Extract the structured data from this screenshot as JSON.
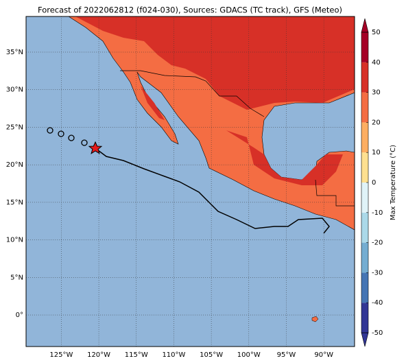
{
  "map": {
    "title": "Forecast of 2022062812 (f024-030), Sources: GDACS (TC track), GFS (Meteo)",
    "xlim": [
      -129.7,
      -85.9
    ],
    "ylim": [
      -4.2,
      39.75
    ],
    "lon_ticks": [
      {
        "value": -125,
        "label": "125°W"
      },
      {
        "value": -120,
        "label": "120°W"
      },
      {
        "value": -115,
        "label": "115°W"
      },
      {
        "value": -110,
        "label": "110°W"
      },
      {
        "value": -105,
        "label": "105°W"
      },
      {
        "value": -100,
        "label": "100°W"
      },
      {
        "value": -95,
        "label": "95°W"
      },
      {
        "value": -90,
        "label": "90°W"
      }
    ],
    "lat_ticks": [
      {
        "value": 0,
        "label": "0°"
      },
      {
        "value": 5,
        "label": "5°N"
      },
      {
        "value": 10,
        "label": "10°N"
      },
      {
        "value": 15,
        "label": "15°N"
      },
      {
        "value": 20,
        "label": "20°N"
      },
      {
        "value": 25,
        "label": "25°N"
      },
      {
        "value": 30,
        "label": "30°N"
      },
      {
        "value": 35,
        "label": "35°N"
      }
    ],
    "colorbar": {
      "label": "Max Temperature (°C)",
      "ticks": [
        -50,
        -40,
        -30,
        -20,
        -10,
        0,
        10,
        20,
        30,
        40,
        50
      ],
      "colors": [
        "#313695",
        "#4575b4",
        "#74add1",
        "#abd9e9",
        "#e0f3f8",
        "#fee090",
        "#fdae61",
        "#f46d43",
        "#d73027",
        "#a50026"
      ]
    }
  }
}
